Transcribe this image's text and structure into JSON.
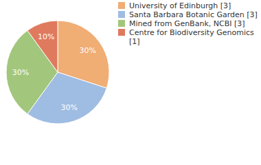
{
  "chart_data": {
    "type": "pie",
    "categories": [
      "University of Edinburgh [3]",
      "Santa Barbara Botanic Garden [3]",
      "Mined from GenBank, NCBI [3]",
      "Centre for Biodiversity Genomics [1]"
    ],
    "values": [
      30,
      30,
      30,
      10
    ],
    "value_labels": [
      "30%",
      "30%",
      "30%",
      "10%"
    ],
    "colors": [
      "#f0ad74",
      "#9fbce2",
      "#a2c77c",
      "#df7a5e"
    ],
    "data_labels": true,
    "legend": "top-right"
  }
}
